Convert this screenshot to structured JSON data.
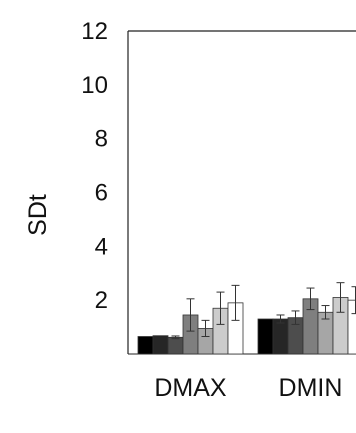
{
  "chart_data": {
    "type": "bar",
    "title": "",
    "xlabel": "",
    "ylabel": "SDt",
    "ylim": [
      0,
      12
    ],
    "yticks": [
      2,
      4,
      6,
      8,
      10,
      12
    ],
    "categories": [
      "DMAX",
      "DMIN"
    ],
    "grid": false,
    "legend": "none",
    "series": [
      {
        "color": "#000000",
        "values": [
          0.65,
          1.3
        ],
        "errors": [
          0.0,
          0.0
        ]
      },
      {
        "color": "#262626",
        "values": [
          0.68,
          1.3
        ],
        "errors": [
          0.0,
          0.15
        ]
      },
      {
        "color": "#4d4d4d",
        "values": [
          0.62,
          1.35
        ],
        "errors": [
          0.05,
          0.25
        ]
      },
      {
        "color": "#7f7f7f",
        "values": [
          1.45,
          2.05
        ],
        "errors": [
          0.6,
          0.4
        ]
      },
      {
        "color": "#a6a6a6",
        "values": [
          0.95,
          1.55
        ],
        "errors": [
          0.3,
          0.25
        ]
      },
      {
        "color": "#cccccc",
        "values": [
          1.7,
          2.1
        ],
        "errors": [
          0.6,
          0.55
        ]
      },
      {
        "color": "#ffffff",
        "values": [
          1.9,
          2.0
        ],
        "errors": [
          0.65,
          0.5
        ]
      }
    ]
  }
}
